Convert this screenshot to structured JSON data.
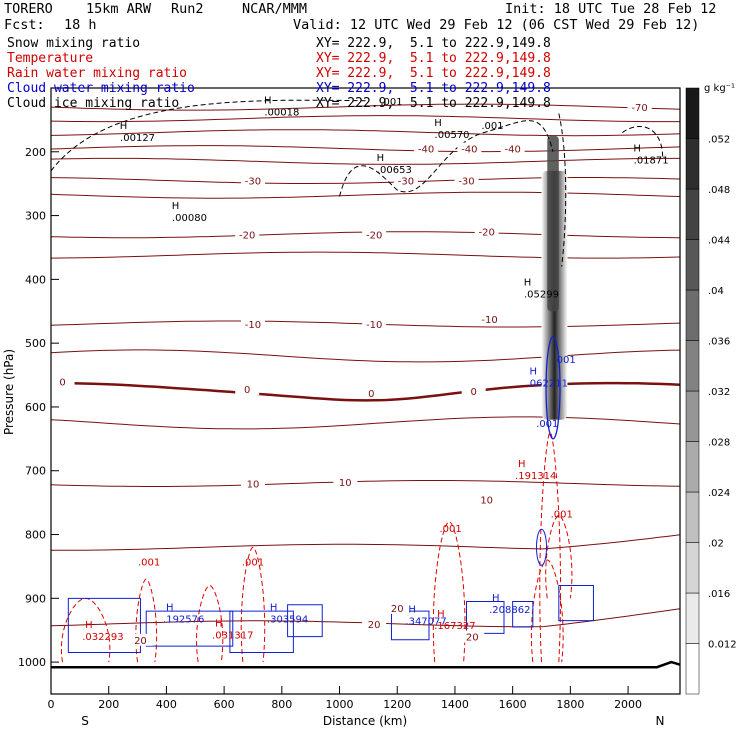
{
  "header": {
    "model": "TORERO",
    "resolution": "15km ARW",
    "run": "Run2",
    "org": "NCAR/MMM",
    "init": "Init: 18 UTC Tue 28 Feb 12",
    "fcst_label": "Fcst:",
    "fcst_value": "18 h",
    "valid": "Valid: 12 UTC Wed 29 Feb 12 (06 CST Wed 29 Feb 12)"
  },
  "fields": [
    {
      "name": "Snow mixing ratio",
      "xy": "XY= 222.9,  5.1 to 222.9,149.8",
      "color": "#000000"
    },
    {
      "name": "Temperature",
      "xy": "XY= 222.9,  5.1 to 222.9,149.8",
      "color": "#d00000"
    },
    {
      "name": "Rain water mixing ratio",
      "xy": "XY= 222.9,  5.1 to 222.9,149.8",
      "color": "#d00000"
    },
    {
      "name": "Cloud water mixing ratio",
      "xy": "XY= 222.9,  5.1 to 222.9,149.8",
      "color": "#0000cc"
    },
    {
      "name": "Cloud ice mixing ratio",
      "xy": "XY= 222.9,  5.1 to 222.9,149.8",
      "color": "#000000"
    }
  ],
  "chart_data": {
    "type": "cross-section",
    "xlabel": "Distance (km)",
    "ylabel": "Pressure (hPa)",
    "xlim": [
      0,
      2180
    ],
    "ylim": [
      1050,
      100
    ],
    "x_ticks": [
      0,
      200,
      400,
      600,
      800,
      1000,
      1200,
      1400,
      1600,
      1800,
      2000
    ],
    "y_ticks": [
      200,
      300,
      400,
      500,
      600,
      700,
      800,
      900,
      1000
    ],
    "left_end": "S",
    "right_end": "N",
    "colorbar": {
      "unit": "g kg⁻¹",
      "ticks": [
        "0.012",
        ".016",
        ".02",
        ".024",
        ".028",
        ".032",
        ".036",
        ".04",
        ".044",
        ".048",
        ".052"
      ],
      "tick_values": [
        0.012,
        0.016,
        0.02,
        0.024,
        0.028,
        0.032,
        0.036,
        0.04,
        0.044,
        0.048,
        0.052
      ],
      "range": [
        0.008,
        0.056
      ]
    },
    "temperature_isotherms": [
      {
        "value": -70,
        "label": "-70",
        "p": 130,
        "label_x": 2040
      },
      {
        "value": -60,
        "label": "",
        "p": 148
      },
      {
        "value": -50,
        "label": "",
        "p": 170
      },
      {
        "value": -40,
        "label": "-40",
        "p": 195,
        "label_x": 1600
      },
      {
        "value": -35,
        "label": "",
        "p": 215
      },
      {
        "value": -30,
        "label": "-30",
        "p": 245,
        "label_x": 700
      },
      {
        "value": -25,
        "label": "",
        "p": 268
      },
      {
        "value": -20,
        "label": "-20",
        "p": 330,
        "label_x": 680
      },
      {
        "value": -15,
        "label": "",
        "p": 362
      },
      {
        "value": -10,
        "label": "-10",
        "p": 470,
        "label_x": 700
      },
      {
        "value": -5,
        "label": "",
        "p": 520
      },
      {
        "value": 0,
        "label": "0",
        "p": 572,
        "label_x": 680
      },
      {
        "value": 5,
        "label": "",
        "p": 625
      },
      {
        "value": 10,
        "label": "10",
        "p": 720,
        "label_x": 700
      },
      {
        "value": 15,
        "label": "",
        "p": 820
      },
      {
        "value": 20,
        "label": "20",
        "p": 940,
        "label_x": 1120
      }
    ],
    "extra_temperature_labels": [
      {
        "label": "-40",
        "x": 1300,
        "p": 195
      },
      {
        "label": "-40",
        "x": 1450,
        "p": 195
      },
      {
        "label": "-30",
        "x": 1230,
        "p": 245
      },
      {
        "label": "-30",
        "x": 1440,
        "p": 245
      },
      {
        "label": "-20",
        "x": 1120,
        "p": 330
      },
      {
        "label": "-20",
        "x": 1510,
        "p": 325
      },
      {
        "label": "-10",
        "x": 1120,
        "p": 470
      },
      {
        "label": "-10",
        "x": 1520,
        "p": 462
      },
      {
        "label": "0",
        "x": 40,
        "p": 560
      },
      {
        "label": "0",
        "x": 1110,
        "p": 578
      },
      {
        "label": "0",
        "x": 1465,
        "p": 575
      },
      {
        "label": "10",
        "x": 1020,
        "p": 718
      },
      {
        "label": "10",
        "x": 1510,
        "p": 745
      },
      {
        "label": "20",
        "x": 310,
        "p": 965
      },
      {
        "label": "20",
        "x": 1460,
        "p": 960
      },
      {
        "label": "20",
        "x": 1200,
        "p": 915
      }
    ],
    "maxima": [
      {
        "field": "ice",
        "label": ".00018",
        "x": 800,
        "p": 140
      },
      {
        "field": "ice",
        "label": ".00127",
        "x": 300,
        "p": 180
      },
      {
        "field": "ice",
        "label": ".00570",
        "x": 1390,
        "p": 175
      },
      {
        "field": "ice",
        "label": ".00653",
        "x": 1190,
        "p": 230
      },
      {
        "field": "ice",
        "label": ".00080",
        "x": 480,
        "p": 305
      },
      {
        "field": "ice",
        "label": ".01871",
        "x": 2080,
        "p": 215
      },
      {
        "field": "snow",
        "label": ".05299",
        "x": 1700,
        "p": 425
      },
      {
        "field": "cloud",
        "label": ".062211",
        "x": 1720,
        "p": 565
      },
      {
        "field": "rain",
        "label": ".191314",
        "x": 1680,
        "p": 710
      },
      {
        "field": "cloud",
        "label": ".192576",
        "x": 460,
        "p": 935
      },
      {
        "field": "cloud",
        "label": ".303594",
        "x": 820,
        "p": 935
      },
      {
        "field": "cloud",
        "label": ".347077",
        "x": 1300,
        "p": 938
      },
      {
        "field": "cloud",
        "label": ".208862",
        "x": 1590,
        "p": 920
      },
      {
        "field": "rain",
        "label": ".032293",
        "x": 180,
        "p": 962
      },
      {
        "field": "rain",
        "label": ".031317",
        "x": 630,
        "p": 960
      },
      {
        "field": "rain",
        "label": ".167327",
        "x": 1400,
        "p": 945
      }
    ],
    "contour_labels": [
      {
        "field": "ice",
        "label": ".001",
        "x": 1180,
        "p": 120
      },
      {
        "field": "ice",
        "label": ".001",
        "x": 1530,
        "p": 158
      },
      {
        "field": "rain",
        "label": ".001",
        "x": 340,
        "p": 842
      },
      {
        "field": "rain",
        "label": ".001",
        "x": 700,
        "p": 842
      },
      {
        "field": "rain",
        "label": ".001",
        "x": 1385,
        "p": 790
      },
      {
        "field": "rain",
        "label": ".001",
        "x": 1770,
        "p": 767
      },
      {
        "field": "cloud",
        "label": ".001",
        "x": 1780,
        "p": 525
      },
      {
        "field": "cloud",
        "label": ".001",
        "x": 1720,
        "p": 625
      }
    ]
  }
}
